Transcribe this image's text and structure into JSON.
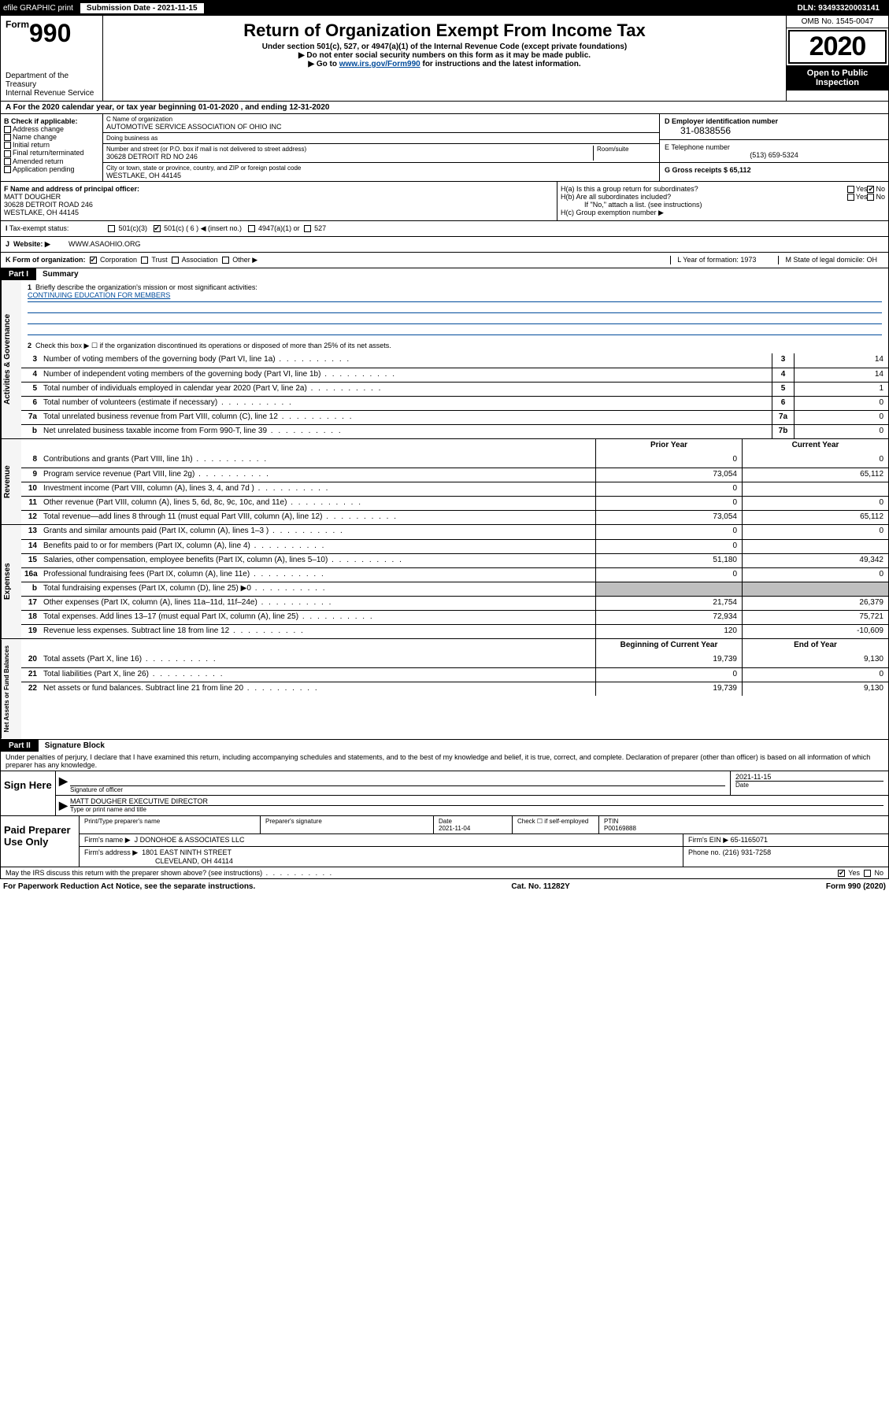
{
  "top": {
    "efile": "efile GRAPHIC print",
    "submission_label": "Submission Date - 2021-11-15",
    "dln": "DLN: 93493320003141"
  },
  "header": {
    "form": "990",
    "form_prefix": "Form",
    "title": "Return of Organization Exempt From Income Tax",
    "sub1": "Under section 501(c), 527, or 4947(a)(1) of the Internal Revenue Code (except private foundations)",
    "sub2": "▶ Do not enter social security numbers on this form as it may be made public.",
    "sub3_a": "▶ Go to ",
    "sub3_link": "www.irs.gov/Form990",
    "sub3_b": " for instructions and the latest information.",
    "dept": "Department of the Treasury",
    "irs": "Internal Revenue Service",
    "omb": "OMB No. 1545-0047",
    "year": "2020",
    "inspect": "Open to Public Inspection"
  },
  "row_a": "A For the 2020 calendar year, or tax year beginning 01-01-2020     , and ending 12-31-2020",
  "box_b": {
    "label": "B Check if applicable:",
    "opts": [
      "Address change",
      "Name change",
      "Initial return",
      "Final return/terminated",
      "Amended return",
      "Application pending"
    ]
  },
  "box_c": {
    "name_label": "C Name of organization",
    "name": "AUTOMOTIVE SERVICE ASSOCIATION OF OHIO INC",
    "dba_label": "Doing business as",
    "dba": "",
    "addr_label": "Number and street (or P.O. box if mail is not delivered to street address)",
    "room_label": "Room/suite",
    "addr": "30628 DETROIT RD NO 246",
    "city_label": "City or town, state or province, country, and ZIP or foreign postal code",
    "city": "WESTLAKE, OH  44145"
  },
  "box_d": {
    "ein_label": "D Employer identification number",
    "ein": "31-0838556",
    "phone_label": "E Telephone number",
    "phone": "(513) 659-5324",
    "gross_label": "G Gross receipts $ 65,112"
  },
  "box_f": {
    "label": "F  Name and address of principal officer:",
    "name": "MATT DOUGHER",
    "addr1": "30628 DETROIT ROAD 246",
    "addr2": "WESTLAKE, OH  44145"
  },
  "box_h": {
    "a": "H(a)  Is this a group return for subordinates?",
    "b": "H(b)  Are all subordinates included?",
    "b_note": "If \"No,\" attach a list. (see instructions)",
    "c": "H(c)  Group exemption number ▶"
  },
  "tax_status": {
    "label": "Tax-exempt status:",
    "c3": "501(c)(3)",
    "c": "501(c) ( 6 ) ◀ (insert no.)",
    "a1": "4947(a)(1) or",
    "s527": "527"
  },
  "website": {
    "label": "Website: ▶",
    "val": "WWW.ASAOHIO.ORG"
  },
  "row_k": {
    "label": "K Form of organization:",
    "corp": "Corporation",
    "trust": "Trust",
    "assoc": "Association",
    "other": "Other ▶",
    "year_label": "L Year of formation: 1973",
    "state_label": "M State of legal domicile: OH"
  },
  "part1": {
    "hdr": "Part I",
    "title": "Summary",
    "l1": "Briefly describe the organization's mission or most significant activities:",
    "mission": "CONTINUING EDUCATION FOR MEMBERS",
    "l2": "Check this box ▶ ☐  if the organization discontinued its operations or disposed of more than 25% of its net assets.",
    "sections": {
      "gov": "Activities & Governance",
      "rev": "Revenue",
      "exp": "Expenses",
      "net": "Net Assets or Fund Balances"
    },
    "lines_gov": [
      {
        "n": "3",
        "d": "Number of voting members of the governing body (Part VI, line 1a)",
        "box": "3",
        "v": "14"
      },
      {
        "n": "4",
        "d": "Number of independent voting members of the governing body (Part VI, line 1b)",
        "box": "4",
        "v": "14"
      },
      {
        "n": "5",
        "d": "Total number of individuals employed in calendar year 2020 (Part V, line 2a)",
        "box": "5",
        "v": "1"
      },
      {
        "n": "6",
        "d": "Total number of volunteers (estimate if necessary)",
        "box": "6",
        "v": "0"
      },
      {
        "n": "7a",
        "d": "Total unrelated business revenue from Part VIII, column (C), line 12",
        "box": "7a",
        "v": "0"
      },
      {
        "n": "b",
        "d": "Net unrelated business taxable income from Form 990-T, line 39",
        "box": "7b",
        "v": "0"
      }
    ],
    "hdr_py": "Prior Year",
    "hdr_cy": "Current Year",
    "lines_rev": [
      {
        "n": "8",
        "d": "Contributions and grants (Part VIII, line 1h)",
        "py": "0",
        "cy": "0"
      },
      {
        "n": "9",
        "d": "Program service revenue (Part VIII, line 2g)",
        "py": "73,054",
        "cy": "65,112"
      },
      {
        "n": "10",
        "d": "Investment income (Part VIII, column (A), lines 3, 4, and 7d )",
        "py": "0",
        "cy": ""
      },
      {
        "n": "11",
        "d": "Other revenue (Part VIII, column (A), lines 5, 6d, 8c, 9c, 10c, and 11e)",
        "py": "0",
        "cy": "0"
      },
      {
        "n": "12",
        "d": "Total revenue—add lines 8 through 11 (must equal Part VIII, column (A), line 12)",
        "py": "73,054",
        "cy": "65,112"
      }
    ],
    "lines_exp": [
      {
        "n": "13",
        "d": "Grants and similar amounts paid (Part IX, column (A), lines 1–3 )",
        "py": "0",
        "cy": "0"
      },
      {
        "n": "14",
        "d": "Benefits paid to or for members (Part IX, column (A), line 4)",
        "py": "0",
        "cy": ""
      },
      {
        "n": "15",
        "d": "Salaries, other compensation, employee benefits (Part IX, column (A), lines 5–10)",
        "py": "51,180",
        "cy": "49,342"
      },
      {
        "n": "16a",
        "d": "Professional fundraising fees (Part IX, column (A), line 11e)",
        "py": "0",
        "cy": "0"
      },
      {
        "n": "b",
        "d": "Total fundraising expenses (Part IX, column (D), line 25) ▶0",
        "py": "",
        "cy": "",
        "shade": true
      },
      {
        "n": "17",
        "d": "Other expenses (Part IX, column (A), lines 11a–11d, 11f–24e)",
        "py": "21,754",
        "cy": "26,379"
      },
      {
        "n": "18",
        "d": "Total expenses. Add lines 13–17 (must equal Part IX, column (A), line 25)",
        "py": "72,934",
        "cy": "75,721"
      },
      {
        "n": "19",
        "d": "Revenue less expenses. Subtract line 18 from line 12",
        "py": "120",
        "cy": "-10,609"
      }
    ],
    "hdr_bcy": "Beginning of Current Year",
    "hdr_eoy": "End of Year",
    "lines_net": [
      {
        "n": "20",
        "d": "Total assets (Part X, line 16)",
        "py": "19,739",
        "cy": "9,130"
      },
      {
        "n": "21",
        "d": "Total liabilities (Part X, line 26)",
        "py": "0",
        "cy": "0"
      },
      {
        "n": "22",
        "d": "Net assets or fund balances. Subtract line 21 from line 20",
        "py": "19,739",
        "cy": "9,130"
      }
    ]
  },
  "part2": {
    "hdr": "Part II",
    "title": "Signature Block",
    "penalty": "Under penalties of perjury, I declare that I have examined this return, including accompanying schedules and statements, and to the best of my knowledge and belief, it is true, correct, and complete. Declaration of preparer (other than officer) is based on all information of which preparer has any knowledge."
  },
  "sign": {
    "here": "Sign Here",
    "sig_of": "Signature of officer",
    "date": "2021-11-15",
    "date_lbl": "Date",
    "name": "MATT DOUGHER  EXECUTIVE DIRECTOR",
    "name_lbl": "Type or print name and title"
  },
  "paid": {
    "label": "Paid Preparer Use Only",
    "h1": "Print/Type preparer's name",
    "h2": "Preparer's signature",
    "h3_date": "Date",
    "h3_val": "2021-11-04",
    "h4": "Check ☐ if self-employed",
    "h5_lbl": "PTIN",
    "h5_val": "P00169888",
    "firm_lbl": "Firm's name     ▶",
    "firm": "J DONOHOE & ASSOCIATES LLC",
    "ein_lbl": "Firm's EIN ▶",
    "ein": "65-1165071",
    "addr_lbl": "Firm's address ▶",
    "addr1": "1801 EAST NINTH STREET",
    "addr2": "CLEVELAND, OH  44114",
    "phone_lbl": "Phone no.",
    "phone": "(216) 931-7258"
  },
  "may_irs": "May the IRS discuss this return with the preparer shown above? (see instructions)",
  "footer": {
    "left": "For Paperwork Reduction Act Notice, see the separate instructions.",
    "mid": "Cat. No. 11282Y",
    "right": "Form 990 (2020)"
  }
}
